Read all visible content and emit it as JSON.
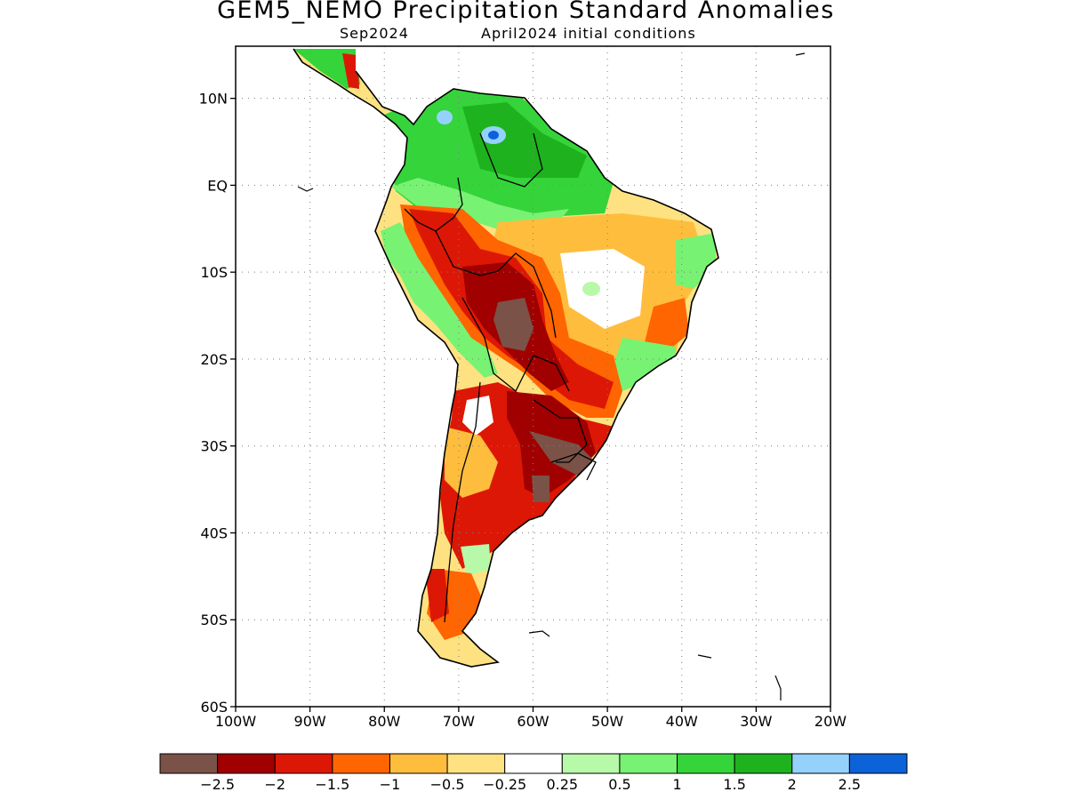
{
  "header": {
    "title": "GEM5_NEMO Precipitation Standard Anomalies",
    "valid_month": "Sep2024",
    "initial_conditions": "April2024 initial conditions"
  },
  "map": {
    "region": "South America",
    "projection": "lat-lon",
    "lon_range": [
      -100,
      -20
    ],
    "lat_range": [
      -60,
      16
    ],
    "grid": "dotted",
    "lat_ticks": [
      {
        "value": 10,
        "label": "10N"
      },
      {
        "value": 0,
        "label": "EQ"
      },
      {
        "value": -10,
        "label": "10S"
      },
      {
        "value": -20,
        "label": "20S"
      },
      {
        "value": -30,
        "label": "30S"
      },
      {
        "value": -40,
        "label": "40S"
      },
      {
        "value": -50,
        "label": "50S"
      },
      {
        "value": -60,
        "label": "60S"
      }
    ],
    "lon_ticks": [
      {
        "value": -100,
        "label": "100W"
      },
      {
        "value": -90,
        "label": "90W"
      },
      {
        "value": -80,
        "label": "80W"
      },
      {
        "value": -70,
        "label": "70W"
      },
      {
        "value": -60,
        "label": "60W"
      },
      {
        "value": -50,
        "label": "50W"
      },
      {
        "value": -40,
        "label": "40W"
      },
      {
        "value": -30,
        "label": "30W"
      },
      {
        "value": -20,
        "label": "20W"
      }
    ]
  },
  "colorbar": {
    "colors": [
      "#7a5247",
      "#a00000",
      "#dd1705",
      "#ff6500",
      "#ffbd3d",
      "#fee281",
      "#ffffff",
      "#b7f9a9",
      "#78f273",
      "#35d43a",
      "#1eb31e",
      "#95d2fb",
      "#0c62d8"
    ],
    "labels": [
      "−2.5",
      "−2",
      "−1.5",
      "−1",
      "−0.5",
      "−0.25",
      "0.25",
      "0.5",
      "1",
      "1.5",
      "2",
      "2.5"
    ]
  }
}
